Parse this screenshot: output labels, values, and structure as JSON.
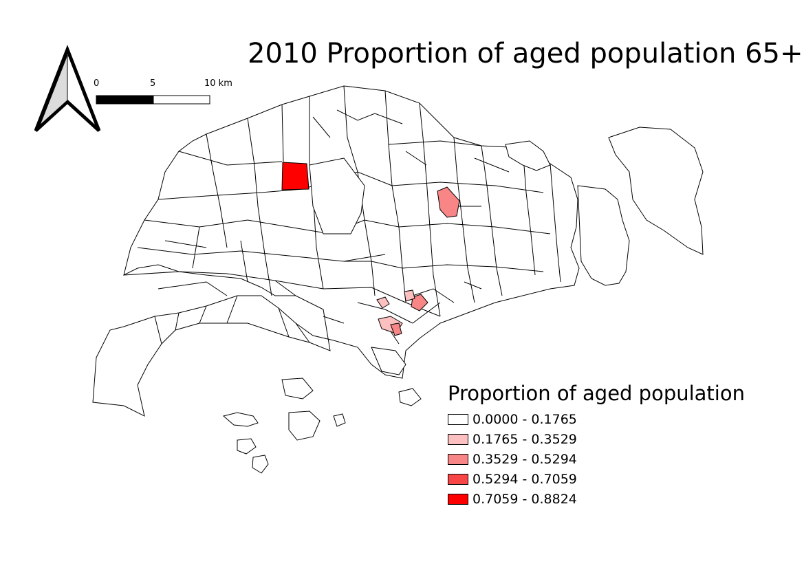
{
  "title": "2010 Proportion of aged population 65+",
  "scale_bar": {
    "labels": [
      "0",
      "5",
      "10 km"
    ]
  },
  "north_arrow": {
    "icon": "north-arrow-icon"
  },
  "legend": {
    "title": "Proportion of aged population",
    "items": [
      {
        "label": "0.0000 - 0.1765",
        "color": "#ffffff"
      },
      {
        "label": "0.1765 - 0.3529",
        "color": "#fcc0c0"
      },
      {
        "label": "0.3529 - 0.5294",
        "color": "#f98686"
      },
      {
        "label": "0.5294 - 0.7059",
        "color": "#f84545"
      },
      {
        "label": "0.7059 - 0.8824",
        "color": "#ff0000"
      }
    ]
  },
  "map": {
    "line_color": "#000000",
    "highlighted_zones": [
      {
        "name": "north-west-zone",
        "class_index": 4
      },
      {
        "name": "north-east-zone",
        "class_index": 2
      },
      {
        "name": "central-zone-a",
        "class_index": 2
      },
      {
        "name": "central-zone-b",
        "class_index": 1
      },
      {
        "name": "central-zone-c",
        "class_index": 1
      }
    ]
  }
}
